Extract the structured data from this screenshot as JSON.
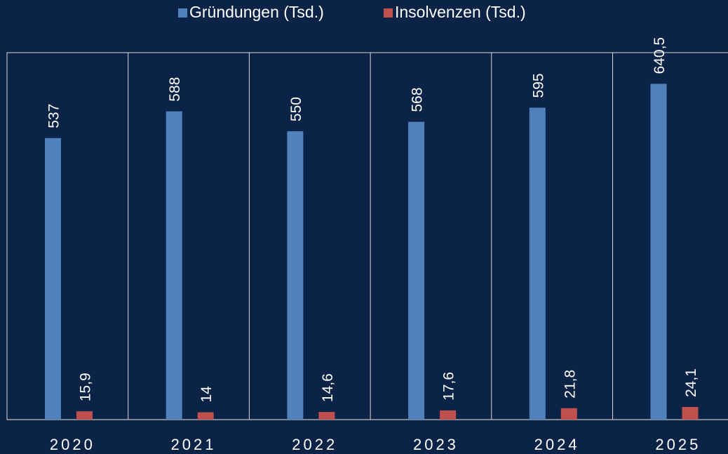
{
  "chart_data": {
    "type": "bar",
    "categories": [
      "2020",
      "2021",
      "2022",
      "2023",
      "2024",
      "2025"
    ],
    "series": [
      {
        "name": "Gründungen (Tsd.)",
        "color": "#4f81bd",
        "values": [
          537,
          588,
          550,
          568,
          595,
          640.5
        ],
        "value_labels": [
          "537",
          "588",
          "550",
          "568",
          "595",
          "640,5"
        ]
      },
      {
        "name": "Insolvenzen (Tsd.)",
        "color": "#c0504d",
        "values": [
          15.9,
          14,
          14.6,
          17.6,
          21.8,
          24.1
        ],
        "value_labels": [
          "15,9",
          "14",
          "14,6",
          "17,6",
          "21,8",
          "24,1"
        ]
      }
    ],
    "ylim": [
      0,
      700
    ],
    "legend": "top"
  }
}
